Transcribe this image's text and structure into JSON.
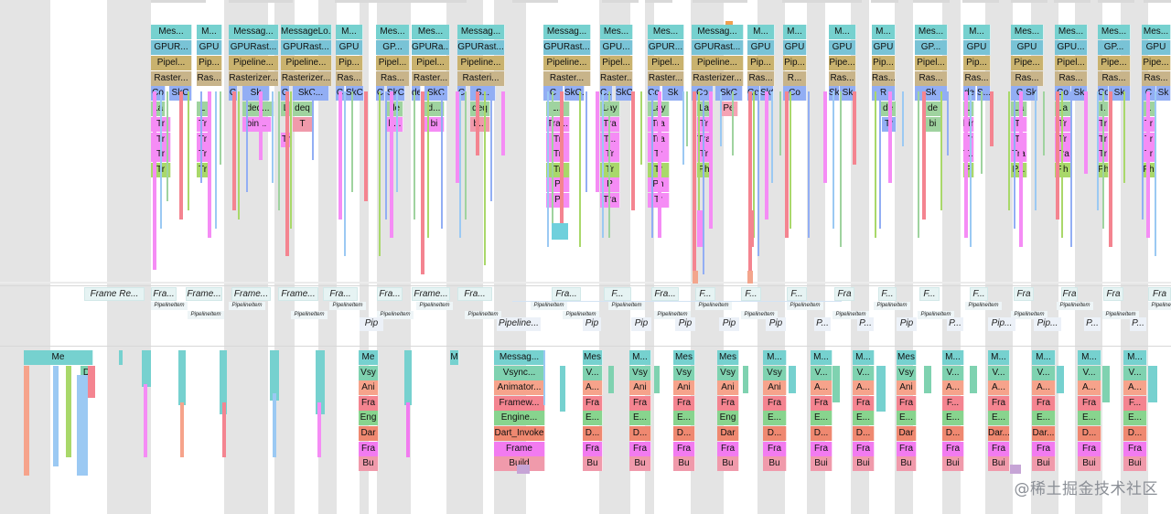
{
  "colors": {
    "message": "#76d1cf",
    "gpu": "#79c3d6",
    "pipeline": "#c9b26e",
    "raster": "#c8b48a",
    "skia": "#92aef4",
    "layer": "#9fd39f",
    "trace": "#f58cf5",
    "physical": "#a9d86a",
    "vsync": "#7fd2b0",
    "animator": "#f6a38b",
    "frame": "#f48490",
    "engine": "#88d48e",
    "dart": "#ef8870",
    "framebuild": "#f27bf0",
    "build": "#f09aab",
    "misc": "#9bc9f3",
    "stripe": "#e4e4e4",
    "async": "#e6f3f3"
  },
  "watermark": "@稀土掘金技术社区",
  "raster_thread": [
    {
      "labels": [
        "Mes...",
        "GPUR...",
        "Pipel...",
        "Raster..."
      ]
    },
    {
      "labels": [
        "M...",
        "GPU",
        "Pip...",
        "Ras..."
      ]
    },
    {
      "labels": [
        "Messag...",
        "GPURast...",
        "Pipeline...",
        "Rasterizer..."
      ]
    },
    {
      "labels": [
        "MessageLo...",
        "GPURast...",
        "Pipeline...",
        "Rasterizer..."
      ]
    },
    {
      "labels": [
        "M...",
        "GPU",
        "Pip...",
        "Ras..."
      ]
    },
    {
      "labels": [
        "Mes...",
        "GP...",
        "Pipel...",
        "Ras..."
      ]
    },
    {
      "labels": [
        "Mes...",
        "GPURa...",
        "Pipel...",
        "Raster..."
      ]
    },
    {
      "labels": [
        "Messag...",
        "GPURast...",
        "Pipeline...",
        "Rasteri..."
      ]
    },
    {
      "labels": [
        "Messag...",
        "GPURast...",
        "Pipeline...",
        "Raster..."
      ]
    },
    {
      "labels": [
        "Mes...",
        "GPU...",
        "Pipel...",
        "Raster..."
      ]
    },
    {
      "labels": [
        "Mes...",
        "GPUR...",
        "Pipel...",
        "Raster..."
      ]
    },
    {
      "labels": [
        "Messag...",
        "GPURast...",
        "Pipeline...",
        "Rasterizer..."
      ]
    },
    {
      "labels": [
        "M...",
        "GPU",
        "Pip...",
        "Ras..."
      ]
    },
    {
      "labels": [
        "M...",
        "GPU",
        "Pip...",
        "R..."
      ]
    },
    {
      "labels": [
        "M...",
        "GPU",
        "Pipe...",
        "Ras..."
      ]
    },
    {
      "labels": [
        "M...",
        "GPU",
        "Pip...",
        "Ras..."
      ]
    },
    {
      "labels": [
        "Mes...",
        "GP...",
        "Pipel...",
        "Ras..."
      ]
    },
    {
      "labels": [
        "M...",
        "GPU",
        "Pip...",
        "Ras..."
      ]
    },
    {
      "labels": [
        "Mes...",
        "GPU",
        "Pipe...",
        "Ras..."
      ]
    },
    {
      "labels": [
        "Mes...",
        "GPU...",
        "Pipel...",
        "Ras..."
      ]
    },
    {
      "labels": [
        "Mes...",
        "GP...",
        "Pipe...",
        "Ras..."
      ]
    },
    {
      "labels": [
        "Mes...",
        "GPU",
        "Pipe...",
        "Ras..."
      ]
    },
    {
      "labels": [
        "M...",
        "GPU",
        "Pip...",
        "Ras..."
      ]
    }
  ],
  "raster_sub": [
    "Co",
    "SkC",
    "C",
    "Sk",
    "C",
    "SkC...",
    "C",
    "SkCan...",
    "C",
    "SkC",
    "de",
    "SkC",
    "C",
    "S...",
    "C",
    "SkC...",
    "C...",
    "SkC",
    "Co",
    "Sk",
    "Co",
    "SkC",
    "Com",
    "SkC...",
    "Co",
    "Sk",
    "Sk",
    "R",
    "Sk",
    "de",
    "S...",
    "C",
    "Sk",
    "Co",
    "Sk",
    "Co",
    "Sk",
    "C",
    "Sk",
    "Sk"
  ],
  "raster_deep": [
    "La",
    "L",
    "deq...",
    "L",
    "deq",
    "de",
    "d...",
    "deq",
    "L...",
    "Lay",
    "Lay",
    "La",
    "Pe",
    "de",
    "de",
    "L",
    "La",
    "La",
    "L",
    "L",
    "Tr",
    "Tr",
    "bin...",
    "T",
    "b...",
    "bi",
    "b...",
    "Tra...",
    "Tra",
    "Tra",
    "Tr",
    "Tr",
    "bi",
    "bin",
    "Tr",
    "Tr",
    "Tr",
    "Tr",
    "Tr",
    "Tr",
    "Tr",
    "Tr",
    "T...",
    "Tra",
    "Tra",
    "Tr",
    "Tr",
    "Tr",
    "Tr",
    "Tr",
    "Tr",
    "Tr",
    "Tr",
    "Tr",
    "Tr",
    "Tr",
    "T...",
    "Tra",
    "Tra",
    "Tr",
    "Tr",
    "Tr",
    "Tr",
    "Tr",
    "Tr",
    "Tr",
    "Ph",
    "P",
    "P...",
    "Ph",
    "Phy",
    "Ph",
    "P",
    "P",
    "Ph",
    "P",
    "Tra",
    "Tr",
    "Tr",
    "C...",
    "Cl",
    "Cl"
  ],
  "async_frames": [
    "Frame Re...",
    "Fra...",
    "Frame...",
    "Frame...",
    "Frame...",
    "Fra...",
    "Fra...",
    "Frame...",
    "Fra...",
    "Fra...",
    "F...",
    "Fra...",
    "F...",
    "F...",
    "F...",
    "Fra",
    "F...",
    "F...",
    "F...",
    "Fra",
    "Fra",
    "Fra",
    "Fra"
  ],
  "pipeline_item": "PipelineItem",
  "pipeline_labels": [
    "Pip",
    "Pipeline...",
    "Pip",
    "Pip",
    "Pip",
    "Pip",
    "Pip",
    "P...",
    "P...",
    "Pip",
    "P...",
    "Pip...",
    "Pip...",
    "P...",
    "P..."
  ],
  "ui_thread": [
    {
      "labels": [
        "Me",
        "D"
      ]
    },
    {
      "labels": [
        "Me",
        "Vsy",
        "Ani",
        "Fra",
        "Eng",
        "Dar",
        "Fra",
        "Bu"
      ]
    },
    {
      "labels": [
        "M"
      ]
    },
    {
      "labels": [
        "Messag...",
        "Vsync...",
        "Animator...",
        "Framew...",
        "Engine...",
        "Dart_Invoke",
        "Frame",
        "Build"
      ]
    },
    {
      "labels": [
        "Mes",
        "V...",
        "A...",
        "Fra",
        "E...",
        "D...",
        "Fra",
        "Bu"
      ]
    },
    {
      "labels": [
        "M...",
        "Vsy",
        "Ani",
        "Fra",
        "E...",
        "D...",
        "Fra",
        "Bu"
      ]
    },
    {
      "labels": [
        "Mes",
        "Vsy",
        "Ani",
        "Fra",
        "E...",
        "D...",
        "Fra",
        "Bu"
      ]
    },
    {
      "labels": [
        "Mes",
        "Vsy",
        "Ani",
        "Fra",
        "Eng",
        "Dar",
        "Fra",
        "Bu"
      ]
    },
    {
      "labels": [
        "M...",
        "Vsy",
        "Ani",
        "Fra",
        "E...",
        "D...",
        "Fra",
        "Bu"
      ]
    },
    {
      "labels": [
        "M...",
        "V...",
        "A...",
        "Fra",
        "E...",
        "D...",
        "Fra",
        "Bui"
      ]
    },
    {
      "labels": [
        "M...",
        "V...",
        "A...",
        "Fra",
        "E...",
        "D...",
        "Fra",
        "Bui"
      ]
    },
    {
      "labels": [
        "Mes",
        "Vsy",
        "Ani",
        "Fra",
        "E...",
        "Dar",
        "Fra",
        "Bu"
      ]
    },
    {
      "labels": [
        "M...",
        "V...",
        "A...",
        "F...",
        "E...",
        "D...",
        "Fra",
        "Bui"
      ]
    },
    {
      "labels": [
        "M...",
        "V...",
        "A...",
        "Fra",
        "E...",
        "Dar...",
        "Fra",
        "Bui"
      ]
    },
    {
      "labels": [
        "M...",
        "V...",
        "A...",
        "Fra",
        "E...",
        "Dar...",
        "Fra",
        "Bui"
      ]
    },
    {
      "labels": [
        "M...",
        "V...",
        "A...",
        "Fra",
        "E...",
        "D...",
        "Fra",
        "Bui"
      ]
    },
    {
      "labels": [
        "M...",
        "V...",
        "A...",
        "F...",
        "E...",
        "D...",
        "Fra",
        "Bui"
      ]
    }
  ]
}
